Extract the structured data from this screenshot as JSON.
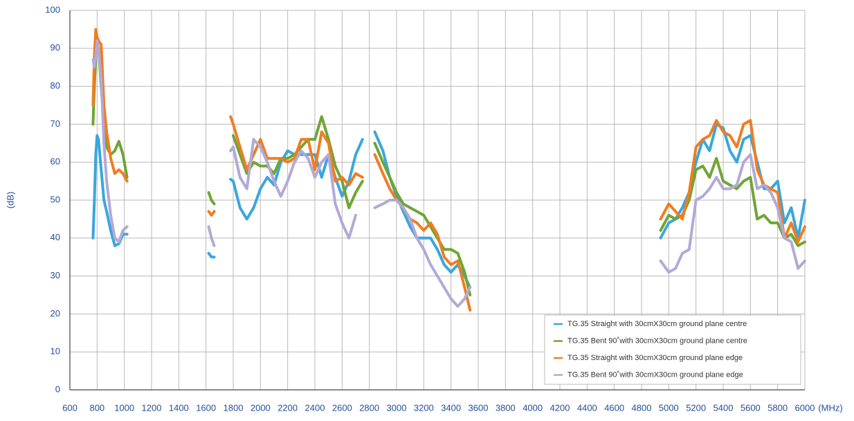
{
  "chart_data": {
    "type": "line",
    "xlabel": "(MHz)",
    "ylabel": "(dB)",
    "x": [
      770,
      780,
      790,
      800,
      810,
      830,
      850,
      870,
      900,
      930,
      960,
      990,
      1020,
      1300,
      1620,
      1640,
      1660,
      1700,
      1780,
      1800,
      1850,
      1900,
      1950,
      2000,
      2050,
      2100,
      2150,
      2200,
      2250,
      2300,
      2350,
      2400,
      2450,
      2500,
      2550,
      2600,
      2650,
      2700,
      2750,
      2800,
      2840,
      2900,
      2950,
      3000,
      3050,
      3100,
      3150,
      3200,
      3250,
      3300,
      3350,
      3400,
      3450,
      3500,
      3540,
      4000,
      4940,
      5000,
      5050,
      5100,
      5150,
      5200,
      5250,
      5300,
      5350,
      5400,
      5450,
      5500,
      5550,
      5600,
      5650,
      5700,
      5750,
      5800,
      5850,
      5900,
      5950,
      6000
    ],
    "series": [
      {
        "name": "TG.35 Straight with 30cmX30cm ground plane centre",
        "color": "#3aa6dd",
        "values": [
          40,
          50,
          62,
          67,
          66,
          58,
          50,
          47,
          42,
          38,
          38.5,
          41,
          41,
          null,
          36,
          35,
          35,
          null,
          55.5,
          55,
          48,
          45,
          48,
          53,
          56,
          54,
          60,
          63,
          62,
          62,
          62,
          62,
          56,
          62,
          56,
          51,
          55,
          62,
          66,
          null,
          68,
          63,
          56,
          51,
          47,
          43,
          40,
          40,
          40,
          37,
          33,
          31,
          33,
          30,
          27,
          null,
          40,
          44,
          45,
          48,
          52,
          60,
          66,
          63,
          70,
          69,
          63,
          60,
          66,
          67,
          60,
          53,
          53,
          55,
          44,
          48,
          40,
          50
        ]
      },
      {
        "name": "TG.35 Bent 90˚with 30cmX30cm ground plane centre",
        "color": "#6ea534",
        "values": [
          70,
          80,
          88,
          91,
          90,
          80,
          70,
          64,
          62,
          63,
          65.5,
          62,
          56,
          null,
          52,
          50,
          49,
          null,
          null,
          67,
          62,
          57,
          60,
          59,
          59,
          57,
          61,
          61,
          62,
          64,
          66,
          66,
          72,
          66,
          59,
          55,
          48,
          52,
          55,
          null,
          65,
          60,
          56,
          52,
          49,
          48,
          47,
          46,
          43,
          40,
          37,
          37,
          36,
          31,
          25,
          null,
          42,
          46,
          45,
          46,
          50,
          58,
          59,
          56,
          61,
          55,
          54,
          53,
          55,
          56,
          45,
          46,
          44,
          44,
          40,
          41,
          38,
          39
        ]
      },
      {
        "name": "TG.35 Straight with 30cmX30cm ground plane edge",
        "color": "#ef7d22",
        "values": [
          75,
          88,
          95,
          93,
          92,
          91,
          75,
          68,
          61,
          57,
          58,
          57,
          55,
          null,
          47,
          46,
          47,
          null,
          72,
          70,
          64,
          58,
          62,
          66,
          61,
          61,
          61,
          60,
          61,
          66,
          66,
          58,
          68,
          65,
          55,
          56,
          54,
          57,
          56,
          null,
          62,
          57,
          53,
          50,
          48,
          45,
          44,
          42,
          44,
          41,
          35,
          33,
          34,
          27,
          21,
          null,
          45,
          49,
          47,
          45,
          52,
          64,
          66,
          67,
          71,
          68,
          67,
          64,
          70,
          71,
          58,
          54,
          53,
          52,
          40,
          44,
          39,
          43
        ]
      },
      {
        "name": "TG.35 Bent 90˚with 30cmX30cm ground plane edge",
        "color": "#b3a9d6",
        "values": [
          87,
          85,
          88,
          92,
          90,
          82,
          65,
          55,
          46,
          40,
          39,
          42,
          43,
          null,
          43,
          40,
          38,
          null,
          63,
          64,
          56,
          53,
          66,
          64,
          60,
          55,
          51,
          55,
          60,
          63,
          61,
          56,
          60,
          62,
          49,
          44,
          40,
          46,
          null,
          null,
          48,
          49,
          50,
          50,
          48,
          45,
          40,
          37,
          33,
          30,
          27,
          24,
          22,
          24,
          27,
          null,
          34,
          31,
          32,
          36,
          37,
          50,
          51,
          53,
          56,
          53,
          53,
          54,
          60,
          62,
          53,
          54,
          52,
          48,
          40,
          39,
          32,
          34
        ]
      }
    ],
    "xlim": [
      600,
      6000
    ],
    "xticks": [
      600,
      800,
      1000,
      1200,
      1400,
      1600,
      1800,
      2000,
      2200,
      2400,
      2600,
      2800,
      3000,
      3200,
      3400,
      3600,
      3800,
      4000,
      4200,
      4400,
      4600,
      4800,
      5000,
      5200,
      5400,
      5600,
      5800,
      6000
    ],
    "ylim": [
      0,
      100
    ],
    "yticks": [
      0,
      10,
      20,
      30,
      40,
      50,
      60,
      70,
      80,
      90,
      100
    ],
    "grid": true,
    "legend": "lower right"
  }
}
